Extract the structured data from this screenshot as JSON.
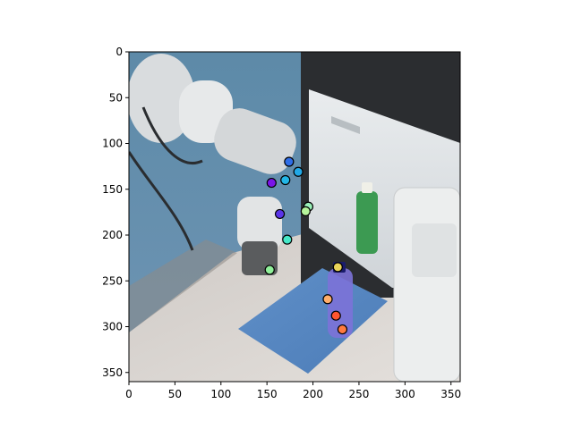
{
  "chart_data": {
    "type": "scatter",
    "title": "",
    "xlabel": "",
    "ylabel": "",
    "xlim": [
      0,
      360
    ],
    "ylim": [
      360,
      0
    ],
    "grid": false,
    "x_ticks": [
      0,
      50,
      100,
      150,
      200,
      250,
      300,
      350
    ],
    "y_ticks": [
      0,
      50,
      100,
      150,
      200,
      250,
      300,
      350
    ],
    "background_image": "robot arm next to open mini fridge with green bottle; purple bottle on blue cloth",
    "series": [
      {
        "points": [
          {
            "x": 174,
            "y": 120,
            "color": "#2f6ee8"
          },
          {
            "x": 184,
            "y": 131,
            "color": "#22a8e6"
          },
          {
            "x": 170,
            "y": 140,
            "color": "#22b6e6"
          },
          {
            "x": 155,
            "y": 143,
            "color": "#7a14e8"
          },
          {
            "x": 195,
            "y": 169,
            "color": "#9af0b8"
          },
          {
            "x": 192,
            "y": 174,
            "color": "#b6f59c"
          },
          {
            "x": 164,
            "y": 177,
            "color": "#5a34e8"
          },
          {
            "x": 172,
            "y": 205,
            "color": "#46e8c8"
          },
          {
            "x": 153,
            "y": 238,
            "color": "#90ef9a"
          },
          {
            "x": 227,
            "y": 235,
            "color": "#e8d25a"
          },
          {
            "x": 216,
            "y": 270,
            "color": "#ffae6a"
          },
          {
            "x": 225,
            "y": 288,
            "color": "#ff5530"
          },
          {
            "x": 232,
            "y": 303,
            "color": "#ff7a40"
          }
        ]
      }
    ]
  }
}
